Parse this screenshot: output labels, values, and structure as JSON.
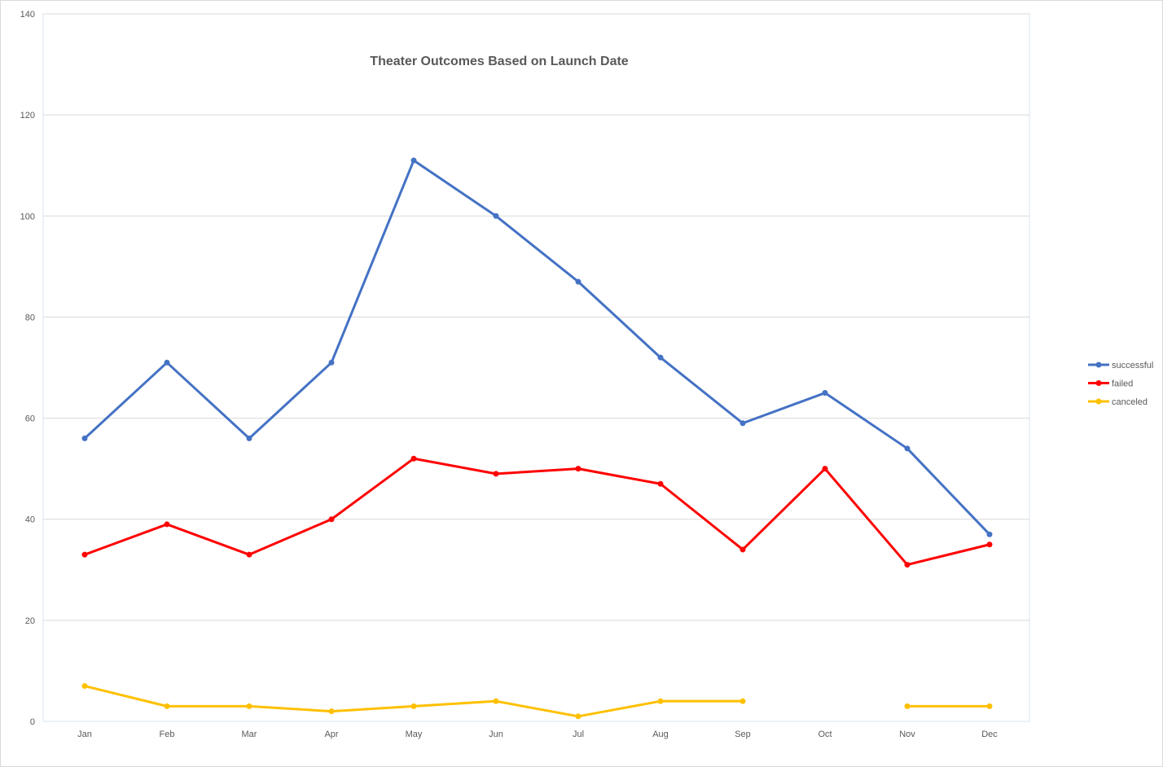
{
  "chart_data": {
    "type": "line",
    "title": "Theater Outcomes Based on Launch Date",
    "xlabel": "",
    "ylabel": "",
    "categories": [
      "Jan",
      "Feb",
      "Mar",
      "Apr",
      "May",
      "Jun",
      "Jul",
      "Aug",
      "Sep",
      "Oct",
      "Nov",
      "Dec"
    ],
    "ylim": [
      0,
      140
    ],
    "yticks": [
      0,
      20,
      40,
      60,
      80,
      100,
      120,
      140
    ],
    "grid": true,
    "legend_position": "right",
    "series": [
      {
        "name": "successful",
        "color": "#4472C4",
        "values": [
          56,
          71,
          56,
          71,
          111,
          100,
          87,
          72,
          59,
          65,
          54,
          37
        ]
      },
      {
        "name": "failed",
        "color": "#FF0000",
        "values": [
          33,
          39,
          33,
          40,
          52,
          49,
          50,
          47,
          34,
          50,
          31,
          35
        ]
      },
      {
        "name": "canceled",
        "color": "#FFC000",
        "values": [
          7,
          3,
          3,
          2,
          3,
          4,
          1,
          4,
          4,
          null,
          3,
          3
        ]
      }
    ]
  }
}
